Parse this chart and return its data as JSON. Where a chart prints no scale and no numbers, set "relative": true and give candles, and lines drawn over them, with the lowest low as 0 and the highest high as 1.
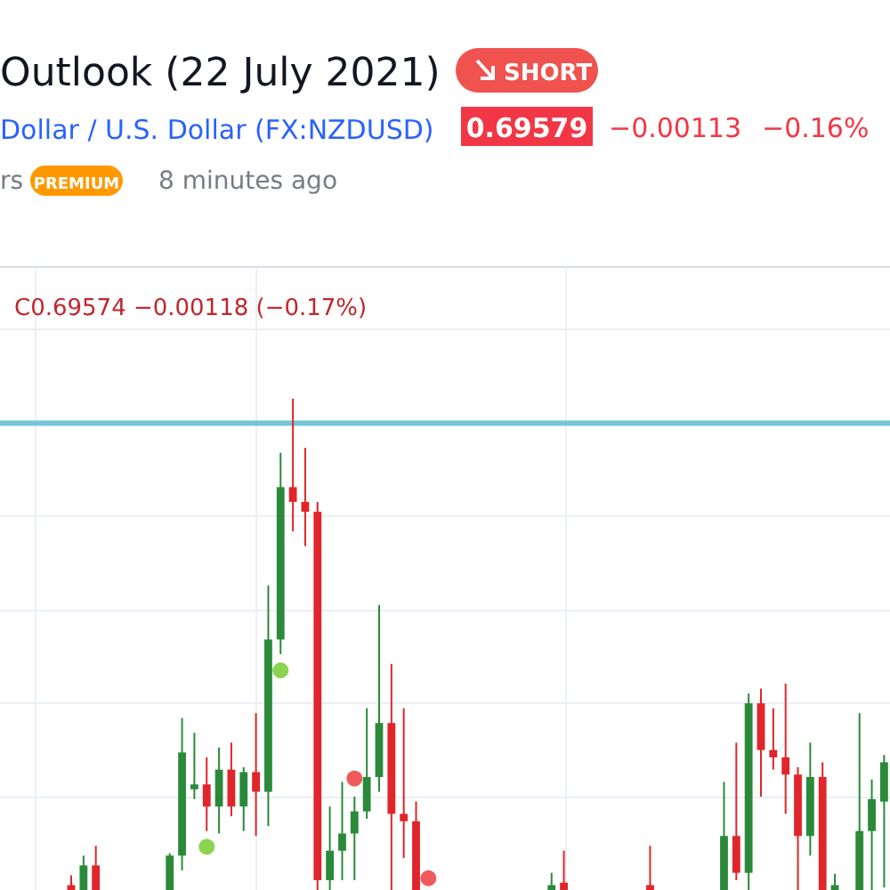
{
  "chart_data": {
    "type": "candlestick",
    "relative": true,
    "title": "Outlook (22 July 2021)",
    "subtitle": "Dollar / U.S. Dollar (FX:NZDUSD)",
    "annotations": [
      "SHORT",
      "0.69579",
      "−0.00113",
      "−0.16%",
      "rs",
      "PREMIUM",
      "8 minutes ago",
      "C0.69574 −0.00118 (−0.17%)"
    ],
    "categories": [
      null,
      null,
      null,
      null,
      null,
      null,
      null,
      null,
      null,
      null,
      null,
      null,
      null,
      null,
      null,
      null,
      null,
      null,
      null,
      null,
      null,
      null,
      null,
      null,
      null,
      null,
      null,
      null,
      null,
      null,
      null,
      null,
      null,
      null,
      null,
      null,
      null,
      null,
      null,
      null,
      null,
      null,
      null,
      null,
      null,
      null,
      null,
      null,
      null,
      null,
      null,
      null,
      null,
      null,
      null,
      null,
      null,
      null,
      null,
      null,
      null,
      null,
      null,
      null,
      null,
      null,
      null
    ],
    "ohlc": [
      [
        0.01,
        0.03,
        0,
        0
      ],
      [
        0,
        0.07,
        0,
        0.05
      ],
      [
        0.05,
        0.09,
        0,
        0
      ],
      null,
      null,
      null,
      null,
      null,
      [
        0,
        0.075,
        0,
        0.07
      ],
      [
        0.07,
        0.35,
        0.04,
        0.28
      ],
      [
        0.205,
        0.32,
        0.185,
        0.215
      ],
      [
        0.215,
        0.27,
        0.12,
        0.17
      ],
      [
        0.17,
        0.29,
        0.115,
        0.245
      ],
      [
        0.245,
        0.3,
        0.15,
        0.17
      ],
      [
        0.17,
        0.25,
        0.12,
        0.24
      ],
      [
        0.24,
        0.36,
        0.11,
        0.2
      ],
      [
        0.2,
        0.62,
        0.13,
        0.51
      ],
      [
        0.51,
        0.89,
        0.48,
        0.82
      ],
      [
        0.82,
        1,
        0.73,
        0.79
      ],
      [
        0.79,
        0.9,
        0.7,
        0.77
      ],
      [
        0.77,
        0.79,
        0,
        0.02
      ],
      [
        0.02,
        0.17,
        0,
        0.08
      ],
      [
        0.08,
        0.22,
        0.02,
        0.115
      ],
      [
        0.115,
        0.19,
        0.02,
        0.16
      ],
      [
        0.16,
        0.37,
        0.145,
        0.23
      ],
      [
        0.23,
        0.58,
        0.2,
        0.34
      ],
      [
        0.34,
        0.46,
        0,
        0.155
      ],
      [
        0.155,
        0.37,
        0.065,
        0.14
      ],
      [
        0.14,
        0.18,
        0,
        0
      ],
      null,
      null,
      null,
      null,
      null,
      null,
      null,
      null,
      null,
      null,
      [
        0,
        0.035,
        0,
        0.01
      ],
      [
        0.015,
        0.08,
        0,
        0
      ],
      null,
      null,
      null,
      null,
      null,
      null,
      [
        0.01,
        0.09,
        0,
        0
      ],
      null,
      null,
      null,
      null,
      null,
      [
        0,
        0.22,
        0,
        0.11
      ],
      [
        0.11,
        0.3,
        0.02,
        0.035
      ],
      [
        0.035,
        0.4,
        0,
        0.38
      ],
      [
        0.38,
        0.41,
        0.19,
        0.285
      ],
      [
        0.285,
        0.37,
        0.245,
        0.27
      ],
      [
        0.27,
        0.42,
        0.155,
        0.235
      ],
      [
        0.235,
        0.25,
        0,
        0.11
      ],
      [
        0.11,
        0.3,
        0.07,
        0.23
      ],
      [
        0.23,
        0.26,
        0,
        0
      ],
      [
        0,
        0.033,
        0,
        0.01
      ],
      null,
      [
        0,
        0.36,
        0,
        0.12
      ],
      [
        0.12,
        0.225,
        0,
        0.185
      ],
      [
        0.18,
        0.275,
        0.005,
        0.26
      ]
    ],
    "colors": [
      "#e0252b",
      "#2a8a3a",
      "#e0252b",
      null,
      null,
      null,
      null,
      null,
      "#2a8a3a",
      "#2a8a3a",
      "#2a8a3a",
      "#e0252b",
      "#2a8a3a",
      "#e0252b",
      "#2a8a3a",
      "#e0252b",
      "#2a8a3a",
      "#2a8a3a",
      "#e0252b",
      "#e0252b",
      "#e0252b",
      "#2a8a3a",
      "#2a8a3a",
      "#2a8a3a",
      "#2a8a3a",
      "#2a8a3a",
      "#e0252b",
      "#e0252b",
      "#e0252b",
      null,
      null,
      null,
      null,
      null,
      null,
      null,
      null,
      null,
      null,
      "#2a8a3a",
      "#e0252b",
      null,
      null,
      null,
      null,
      null,
      null,
      "#e0252b",
      null,
      null,
      null,
      null,
      null,
      "#2a8a3a",
      "#e0252b",
      "#2a8a3a",
      "#e0252b",
      "#e0252b",
      "#e0252b",
      "#e0252b",
      "#2a8a3a",
      "#e0252b",
      "#2a8a3a",
      null,
      "#2a8a3a",
      "#2a8a3a",
      "#2a8a3a"
    ],
    "series": [
      {
        "type": "scatter",
        "color": "#8cd450",
        "values": [
          null,
          null,
          null,
          null,
          null,
          null,
          null,
          null,
          null,
          null,
          null,
          0.088,
          null,
          null,
          null,
          null,
          null,
          0.447,
          null,
          null,
          null,
          null,
          null,
          null,
          null,
          null,
          null,
          null,
          null,
          null,
          null,
          null,
          null,
          null,
          null,
          null,
          null,
          null,
          null,
          null,
          null,
          null,
          null,
          null,
          null,
          null,
          null,
          null,
          null,
          null,
          null,
          null,
          null,
          null,
          null,
          null,
          null,
          null,
          null,
          null,
          null,
          null,
          null,
          null,
          null,
          null,
          null
        ]
      },
      {
        "type": "scatter",
        "color": "#f05a5a",
        "values": [
          null,
          null,
          null,
          null,
          null,
          null,
          null,
          null,
          null,
          null,
          null,
          null,
          null,
          null,
          null,
          null,
          null,
          null,
          null,
          null,
          null,
          null,
          null,
          0.227,
          null,
          null,
          null,
          null,
          null,
          0.024,
          null,
          null,
          null,
          null,
          null,
          null,
          null,
          null,
          null,
          null,
          null,
          null,
          null,
          null,
          null,
          null,
          null,
          null,
          null,
          null,
          null,
          null,
          null,
          null,
          null,
          null,
          null,
          null,
          null,
          null,
          null,
          null,
          null,
          null,
          null,
          null,
          null
        ]
      }
    ],
    "marker": "circle",
    "ref_lines": [
      {
        "axis": "y",
        "value": 0.95,
        "color": "#76c6d6"
      }
    ],
    "grid": true
  }
}
